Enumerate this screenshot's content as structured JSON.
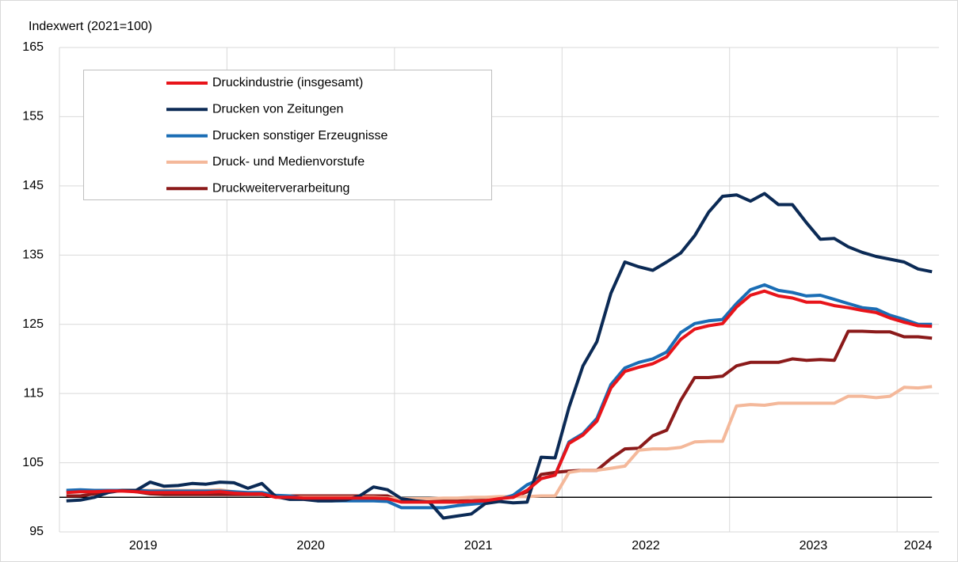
{
  "chart_data": {
    "type": "line",
    "y_label": "Indexwert (2021=100)",
    "categories": [
      "2019",
      null,
      null,
      null,
      null,
      null,
      null,
      null,
      null,
      null,
      null,
      null,
      "2020",
      null,
      null,
      null,
      null,
      null,
      null,
      null,
      null,
      null,
      null,
      null,
      "2021",
      null,
      null,
      null,
      null,
      null,
      null,
      null,
      null,
      null,
      null,
      null,
      "2022",
      null,
      null,
      null,
      null,
      null,
      null,
      null,
      null,
      null,
      null,
      null,
      "2023",
      null,
      null,
      null,
      null,
      null,
      null,
      null,
      null,
      null,
      null,
      null,
      "2024",
      null,
      null
    ],
    "ylim": [
      95,
      165
    ],
    "yticks": [
      95,
      105,
      115,
      125,
      135,
      145,
      155,
      165
    ],
    "grid": true,
    "legend": "upper left",
    "reference_line": 100,
    "series": [
      {
        "name": "Druckindustrie (insgesamt)",
        "color": "#e8141a",
        "values": [
          100.7,
          100.8,
          100.8,
          100.9,
          100.9,
          100.8,
          100.7,
          100.7,
          100.7,
          100.7,
          100.7,
          100.8,
          100.6,
          100.5,
          100.5,
          100,
          100,
          99.9,
          99.9,
          99.9,
          99.9,
          99.9,
          99.9,
          99.8,
          99.3,
          99.3,
          99.3,
          99.3,
          99.3,
          99.4,
          99.5,
          99.8,
          100,
          101,
          102.7,
          103.2,
          107.8,
          109,
          111,
          115.8,
          118.2,
          118.8,
          119.3,
          120.3,
          122.8,
          124.3,
          124.8,
          125.1,
          127.5,
          129.2,
          129.8,
          129.1,
          128.8,
          128.2,
          128.2,
          127.7,
          127.4,
          127,
          126.7,
          125.9,
          125.3,
          124.8,
          124.7
        ]
      },
      {
        "name": "Drucken von Zeitungen",
        "color": "#0b2a55",
        "values": [
          99.5,
          99.6,
          100,
          100.7,
          101,
          101,
          102.2,
          101.6,
          101.7,
          102,
          101.9,
          102.2,
          102.1,
          101.3,
          102,
          100.1,
          99.7,
          99.7,
          99.5,
          99.5,
          99.6,
          100.2,
          101.5,
          101.1,
          99.8,
          99.5,
          99.3,
          97,
          97.3,
          97.6,
          99.1,
          99.4,
          99.2,
          99.3,
          105.8,
          105.7,
          113,
          119,
          122.5,
          129.5,
          134,
          133.3,
          132.8,
          134,
          135.3,
          137.8,
          141.2,
          143.5,
          143.7,
          142.8,
          143.9,
          142.3,
          142.3,
          139.7,
          137.3,
          137.4,
          136.2,
          135.4,
          134.8,
          134.4,
          134,
          133,
          132.6
        ]
      },
      {
        "name": "Drucken sonstiger Erzeugnisse",
        "color": "#1a6db5",
        "values": [
          101,
          101.1,
          101,
          101,
          101,
          101,
          100.9,
          100.9,
          100.9,
          100.9,
          100.9,
          100.9,
          100.8,
          100.7,
          100.7,
          100.3,
          100.2,
          99.8,
          99.5,
          99.5,
          99.5,
          99.5,
          99.5,
          99.4,
          98.5,
          98.5,
          98.5,
          98.5,
          98.8,
          99,
          99.2,
          99.7,
          100.3,
          101.8,
          102.7,
          103.2,
          108,
          109.2,
          111.4,
          116.3,
          118.7,
          119.5,
          120,
          121,
          123.8,
          125.1,
          125.5,
          125.7,
          128,
          130,
          130.7,
          129.9,
          129.6,
          129.1,
          129.2,
          128.6,
          128,
          127.4,
          127.2,
          126.3,
          125.7,
          125,
          125
        ]
      },
      {
        "name": "Druck- und Medienvorstufe",
        "color": "#f4b89a",
        "values": [
          100.8,
          101,
          101,
          100.9,
          100.9,
          101,
          101,
          101,
          101,
          101,
          101,
          101.1,
          100.8,
          100.6,
          100.5,
          100.1,
          100,
          100,
          100,
          100,
          100,
          100,
          100,
          99.9,
          99.8,
          99.8,
          99.8,
          99.9,
          99.9,
          100,
          100,
          100.1,
          100.1,
          100.1,
          100.2,
          100.2,
          103.6,
          103.9,
          103.9,
          104.2,
          104.5,
          106.8,
          107,
          107,
          107.2,
          108,
          108.1,
          108.1,
          113.2,
          113.4,
          113.3,
          113.6,
          113.6,
          113.6,
          113.6,
          113.6,
          114.6,
          114.6,
          114.4,
          114.6,
          115.9,
          115.8,
          116
        ]
      },
      {
        "name": "Druckweiterverarbeitung",
        "color": "#8b1a1a",
        "values": [
          100.2,
          100.2,
          100.5,
          100.8,
          101,
          100.8,
          100.5,
          100.4,
          100.4,
          100.4,
          100.4,
          100.4,
          100.4,
          100.4,
          100.4,
          100.2,
          100.2,
          100.2,
          100.2,
          100.2,
          100.2,
          100.2,
          100.2,
          100.2,
          99.5,
          99.5,
          99.5,
          99.5,
          99.5,
          99.5,
          99.6,
          99.9,
          100,
          100.8,
          103.3,
          103.6,
          103.8,
          103.9,
          103.9,
          105.6,
          107,
          107.1,
          108.9,
          109.7,
          114,
          117.3,
          117.3,
          117.5,
          119,
          119.5,
          119.5,
          119.5,
          120,
          119.8,
          119.9,
          119.8,
          124,
          124,
          123.9,
          123.9,
          123.2,
          123.2,
          123
        ]
      }
    ]
  }
}
